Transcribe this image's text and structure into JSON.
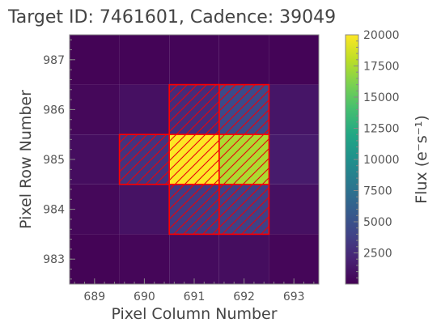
{
  "chart_data": {
    "type": "heatmap",
    "title": "Target ID: 7461601, Cadence: 39049",
    "xlabel": "Pixel Column Number",
    "ylabel": "Pixel Row Number",
    "colorbar_label": "Flux (e⁻s⁻¹)",
    "colormap": "viridis",
    "clim": [
      0,
      20000
    ],
    "x_ticks": [
      689,
      690,
      691,
      692,
      693
    ],
    "y_ticks": [
      983,
      984,
      985,
      986,
      987
    ],
    "colorbar_ticks": [
      2500,
      5000,
      7500,
      10000,
      12500,
      15000,
      17500,
      20000
    ],
    "xlim": [
      688.5,
      693.5
    ],
    "ylim": [
      982.5,
      987.5
    ],
    "columns": [
      689,
      690,
      691,
      692,
      693
    ],
    "rows": [
      987,
      986,
      985,
      984,
      983
    ],
    "values": [
      [
        150,
        180,
        220,
        250,
        200
      ],
      [
        400,
        900,
        2500,
        4500,
        1200
      ],
      [
        700,
        3000,
        20000,
        17500,
        1500
      ],
      [
        400,
        1000,
        3500,
        3800,
        900
      ],
      [
        150,
        300,
        600,
        700,
        300
      ]
    ],
    "aperture_mask": [
      [
        690,
        985
      ],
      [
        691,
        986
      ],
      [
        692,
        986
      ],
      [
        691,
        985
      ],
      [
        692,
        985
      ],
      [
        691,
        984
      ],
      [
        692,
        984
      ]
    ],
    "aperture_color": "#ff0000",
    "grid": false
  }
}
